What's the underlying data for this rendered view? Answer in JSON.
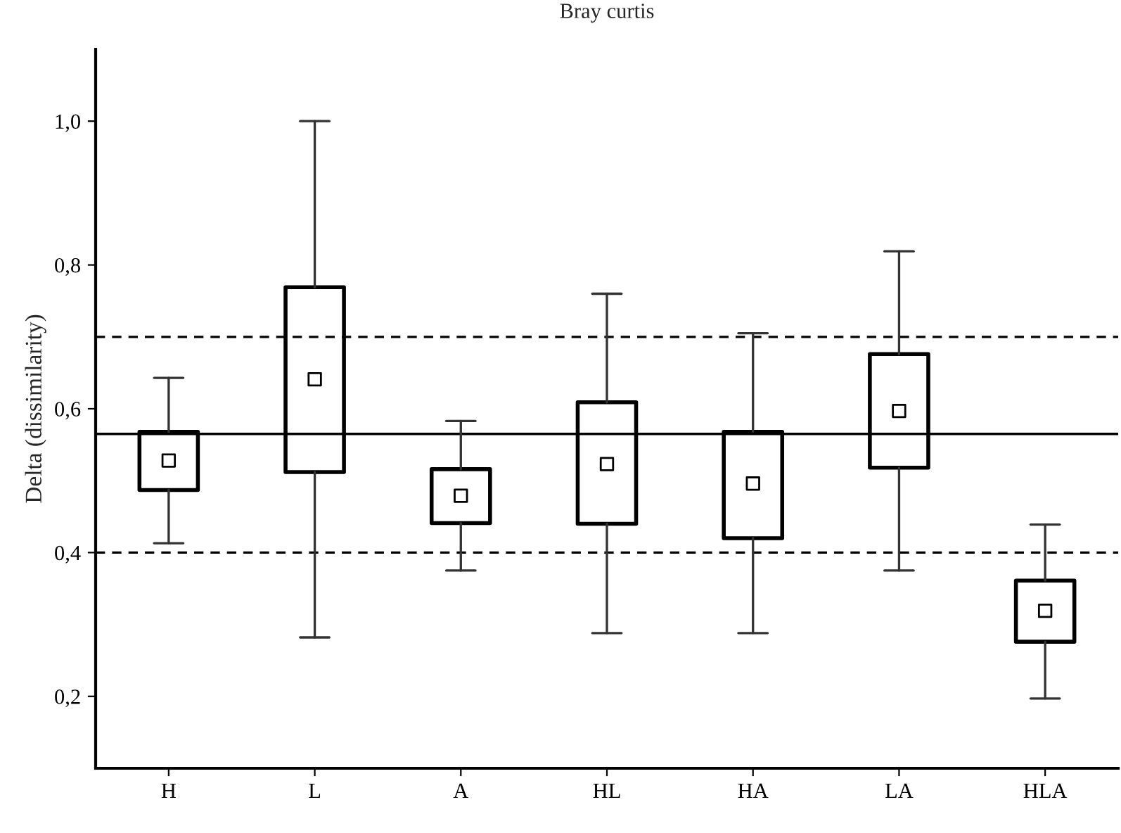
{
  "chart_data": {
    "type": "box",
    "title": "Bray curtis",
    "ylabel": "Delta (dissimilarity)",
    "categories": [
      "H",
      "L",
      "A",
      "HL",
      "HA",
      "LA",
      "HLA"
    ],
    "boxes": [
      {
        "low": 0.413,
        "q1": 0.487,
        "median": 0.528,
        "q3": 0.568,
        "high": 0.643
      },
      {
        "low": 0.282,
        "q1": 0.512,
        "median": 0.641,
        "q3": 0.769,
        "high": 1.0
      },
      {
        "low": 0.375,
        "q1": 0.441,
        "median": 0.479,
        "q3": 0.516,
        "high": 0.583
      },
      {
        "low": 0.288,
        "q1": 0.44,
        "median": 0.523,
        "q3": 0.609,
        "high": 0.76
      },
      {
        "low": 0.288,
        "q1": 0.42,
        "median": 0.496,
        "q3": 0.568,
        "high": 0.705
      },
      {
        "low": 0.375,
        "q1": 0.518,
        "median": 0.597,
        "q3": 0.676,
        "high": 0.819
      },
      {
        "low": 0.197,
        "q1": 0.276,
        "median": 0.319,
        "q3": 0.361,
        "high": 0.439
      }
    ],
    "ylim": [
      0.1,
      1.1
    ],
    "yticks": [
      {
        "value": 0.2,
        "label": "0,2"
      },
      {
        "value": 0.4,
        "label": "0,4"
      },
      {
        "value": 0.6,
        "label": "0,6"
      },
      {
        "value": 0.8,
        "label": "0,8"
      },
      {
        "value": 1.0,
        "label": "1,0"
      }
    ],
    "ref_lines": [
      {
        "axis": "y",
        "value": 0.7,
        "label": null,
        "color": "#000000",
        "line_style": "dashed"
      },
      {
        "axis": "y",
        "value": 0.565,
        "label": null,
        "color": "#000000",
        "line_style": "solid"
      },
      {
        "axis": "y",
        "value": 0.4,
        "label": null,
        "color": "#000000",
        "line_style": "dashed"
      }
    ],
    "marker": "square",
    "grid": false,
    "legend": false
  }
}
